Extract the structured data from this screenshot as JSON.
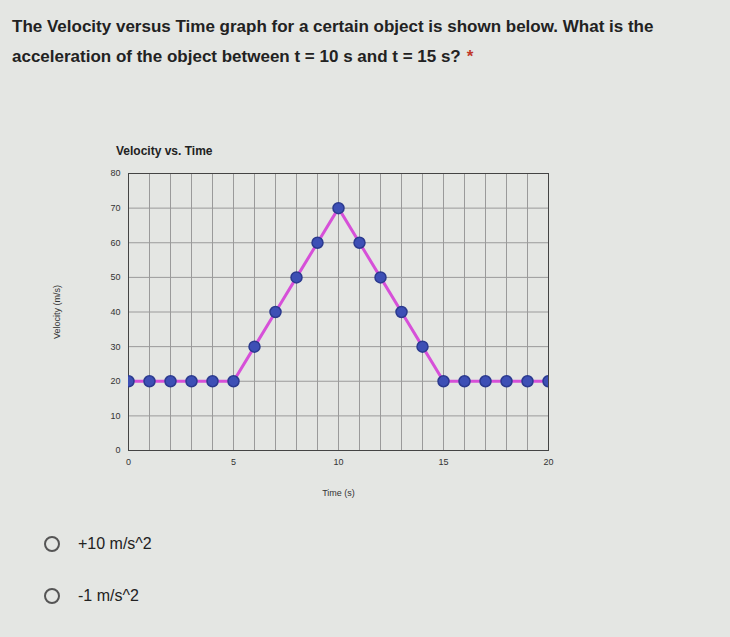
{
  "question": "The Velocity versus Time graph for a certain object is shown below. What is the acceleration of the object between t = 10 s and t = 15 s?",
  "required_mark": "*",
  "options": [
    "+10 m/s^2",
    "-1 m/s^2"
  ],
  "chart_data": {
    "type": "line",
    "title": "Velocity vs. Time",
    "x_label": "Time (s)",
    "y_label": "Velocity (m/s)",
    "x": [
      0,
      1,
      2,
      3,
      4,
      5,
      6,
      7,
      8,
      9,
      10,
      11,
      12,
      13,
      14,
      15,
      16,
      17,
      18,
      19,
      20
    ],
    "values": [
      20,
      20,
      20,
      20,
      20,
      20,
      30,
      40,
      50,
      60,
      70,
      60,
      50,
      40,
      30,
      20,
      20,
      20,
      20,
      20,
      20
    ],
    "color": "#d650d8",
    "marker": "circle",
    "xlim": [
      0,
      20
    ],
    "xticks": [
      0,
      5,
      10,
      15,
      20
    ],
    "ylim": [
      0,
      80
    ],
    "yticks": [
      0,
      10,
      20,
      30,
      40,
      50,
      60,
      70,
      80
    ],
    "grid": true
  }
}
